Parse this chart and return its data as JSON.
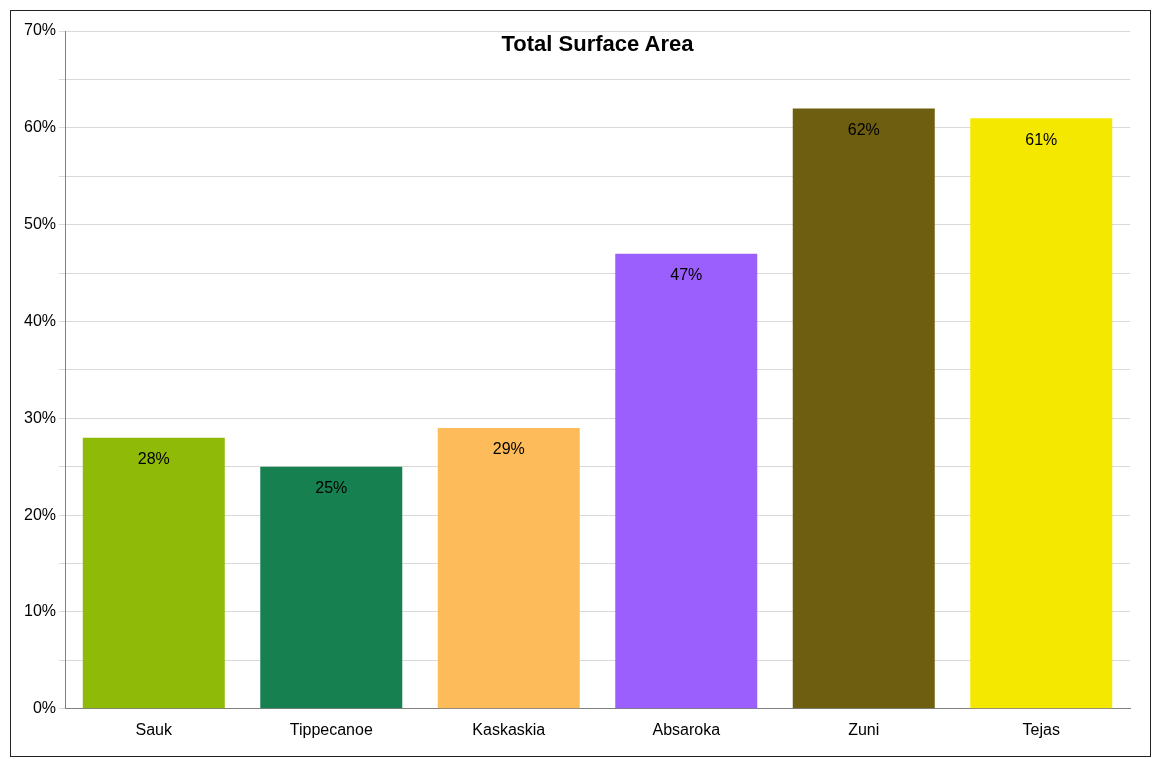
{
  "chart_data": {
    "type": "bar",
    "title": "Total Surface Area",
    "categories": [
      "Sauk",
      "Tippecanoe",
      "Kaskaskia",
      "Absaroka",
      "Zuni",
      "Tejas"
    ],
    "values": [
      28,
      25,
      29,
      47,
      62,
      61
    ],
    "value_labels": [
      "28%",
      "25%",
      "29%",
      "47%",
      "62%",
      "61%"
    ],
    "colors": [
      "#8fba08",
      "#178050",
      "#fdbb5a",
      "#9b5ffd",
      "#6e5e0f",
      "#f5e800"
    ],
    "ylim": [
      0,
      70
    ],
    "yticks": [
      {
        "value": 0,
        "label": "0%"
      },
      {
        "value": 5,
        "label": null
      },
      {
        "value": 10,
        "label": "10%"
      },
      {
        "value": 15,
        "label": null
      },
      {
        "value": 20,
        "label": "20%"
      },
      {
        "value": 25,
        "label": null
      },
      {
        "value": 30,
        "label": "30%"
      },
      {
        "value": 35,
        "label": null
      },
      {
        "value": 40,
        "label": "40%"
      },
      {
        "value": 45,
        "label": null
      },
      {
        "value": 50,
        "label": "50%"
      },
      {
        "value": 55,
        "label": null
      },
      {
        "value": 60,
        "label": "60%"
      },
      {
        "value": 65,
        "label": null
      },
      {
        "value": 70,
        "label": "70%"
      }
    ],
    "grid": "y",
    "legend": false
  }
}
